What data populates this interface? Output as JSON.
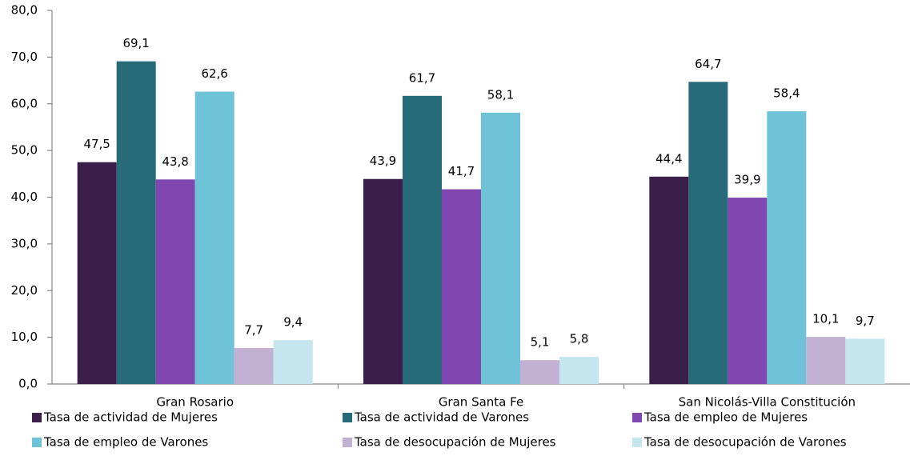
{
  "chart_data": {
    "type": "bar",
    "categories": [
      "Gran Rosario",
      "Gran Santa Fe",
      "San Nicolás-Villa Constitución"
    ],
    "series": [
      {
        "name": "Tasa de actividad de Mujeres",
        "color": "#3b1f4a",
        "values": [
          47.5,
          43.9,
          44.4
        ],
        "value_labels": [
          "47,5",
          "43,9",
          "44,4"
        ]
      },
      {
        "name": "Tasa de actividad de Varones",
        "color": "#286b78",
        "values": [
          69.1,
          61.7,
          64.7
        ],
        "value_labels": [
          "69,1",
          "61,7",
          "64,7"
        ]
      },
      {
        "name": "Tasa de empleo de Mujeres",
        "color": "#8047b0",
        "values": [
          43.8,
          41.7,
          39.9
        ],
        "value_labels": [
          "43,8",
          "41,7",
          "39,9"
        ]
      },
      {
        "name": "Tasa de empleo de Varones",
        "color": "#6fc3d9",
        "values": [
          62.6,
          58.1,
          58.4
        ],
        "value_labels": [
          "62,6",
          "58,1",
          "58,4"
        ]
      },
      {
        "name": "Tasa de desocupación de Mujeres",
        "color": "#c3b1d4",
        "values": [
          7.7,
          5.1,
          10.1
        ],
        "value_labels": [
          "7,7",
          "5,1",
          "10,1"
        ]
      },
      {
        "name": "Tasa de desocupación de Varones",
        "color": "#c6e6ef",
        "values": [
          9.4,
          5.8,
          9.7
        ],
        "value_labels": [
          "9,4",
          "5,8",
          "9,7"
        ]
      }
    ],
    "ylim": [
      0,
      80
    ],
    "yticks": [
      {
        "value": 0,
        "label": "0,0"
      },
      {
        "value": 10,
        "label": "10,0"
      },
      {
        "value": 20,
        "label": "20,0"
      },
      {
        "value": 30,
        "label": "30,0"
      },
      {
        "value": 40,
        "label": "40,0"
      },
      {
        "value": 50,
        "label": "50,0"
      },
      {
        "value": 60,
        "label": "60,0"
      },
      {
        "value": 70,
        "label": "70,0"
      },
      {
        "value": 80,
        "label": "80,0"
      }
    ],
    "legend": "bottom"
  }
}
